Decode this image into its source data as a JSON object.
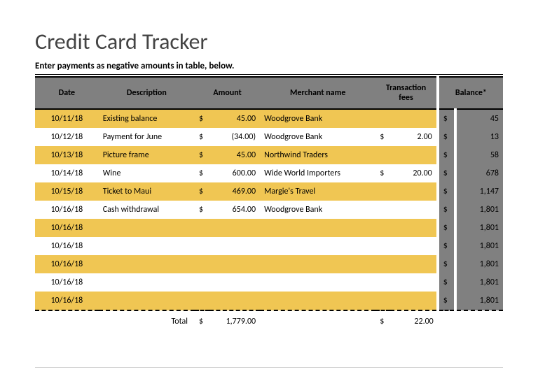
{
  "title": "Credit Card Tracker",
  "subtitle": "Enter payments as negative amounts in table, below.",
  "columns": {
    "date": "Date",
    "description": "Description",
    "amount": "Amount",
    "merchant": "Merchant name",
    "fees": "Transaction fees",
    "balance": "Balance*"
  },
  "currency_symbol": "$",
  "rows": [
    {
      "date": "10/11/18",
      "description": "Existing balance",
      "amount": "45.00",
      "merchant": "Woodgrove Bank",
      "fee": "",
      "balance": "45"
    },
    {
      "date": "10/12/18",
      "description": "Payment for June",
      "amount": "(34.00)",
      "merchant": "Woodgrove Bank",
      "fee": "2.00",
      "balance": "13"
    },
    {
      "date": "10/13/18",
      "description": "Picture frame",
      "amount": "45.00",
      "merchant": "Northwind Traders",
      "fee": "",
      "balance": "58"
    },
    {
      "date": "10/14/18",
      "description": "Wine",
      "amount": "600.00",
      "merchant": "Wide World Importers",
      "fee": "20.00",
      "balance": "678"
    },
    {
      "date": "10/15/18",
      "description": "Ticket to Maui",
      "amount": "469.00",
      "merchant": "Margie's Travel",
      "fee": "",
      "balance": "1,147"
    },
    {
      "date": "10/16/18",
      "description": "Cash withdrawal",
      "amount": "654.00",
      "merchant": "Woodgrove Bank",
      "fee": "",
      "balance": "1,801"
    },
    {
      "date": "10/16/18",
      "description": "",
      "amount": "",
      "merchant": "",
      "fee": "",
      "balance": "1,801"
    },
    {
      "date": "10/16/18",
      "description": "",
      "amount": "",
      "merchant": "",
      "fee": "",
      "balance": "1,801"
    },
    {
      "date": "10/16/18",
      "description": "",
      "amount": "",
      "merchant": "",
      "fee": "",
      "balance": "1,801"
    },
    {
      "date": "10/16/18",
      "description": "",
      "amount": "",
      "merchant": "",
      "fee": "",
      "balance": "1,801"
    },
    {
      "date": "10/16/18",
      "description": "",
      "amount": "",
      "merchant": "",
      "fee": "",
      "balance": "1,801"
    }
  ],
  "totals": {
    "label": "Total",
    "amount": "1,779.00",
    "fees": "22.00"
  },
  "colors": {
    "header_bg": "#808080",
    "row_odd_bg": "#f0c653",
    "row_even_bg": "#ffffff",
    "balance_bg": "#808080",
    "title_color": "#444444"
  }
}
